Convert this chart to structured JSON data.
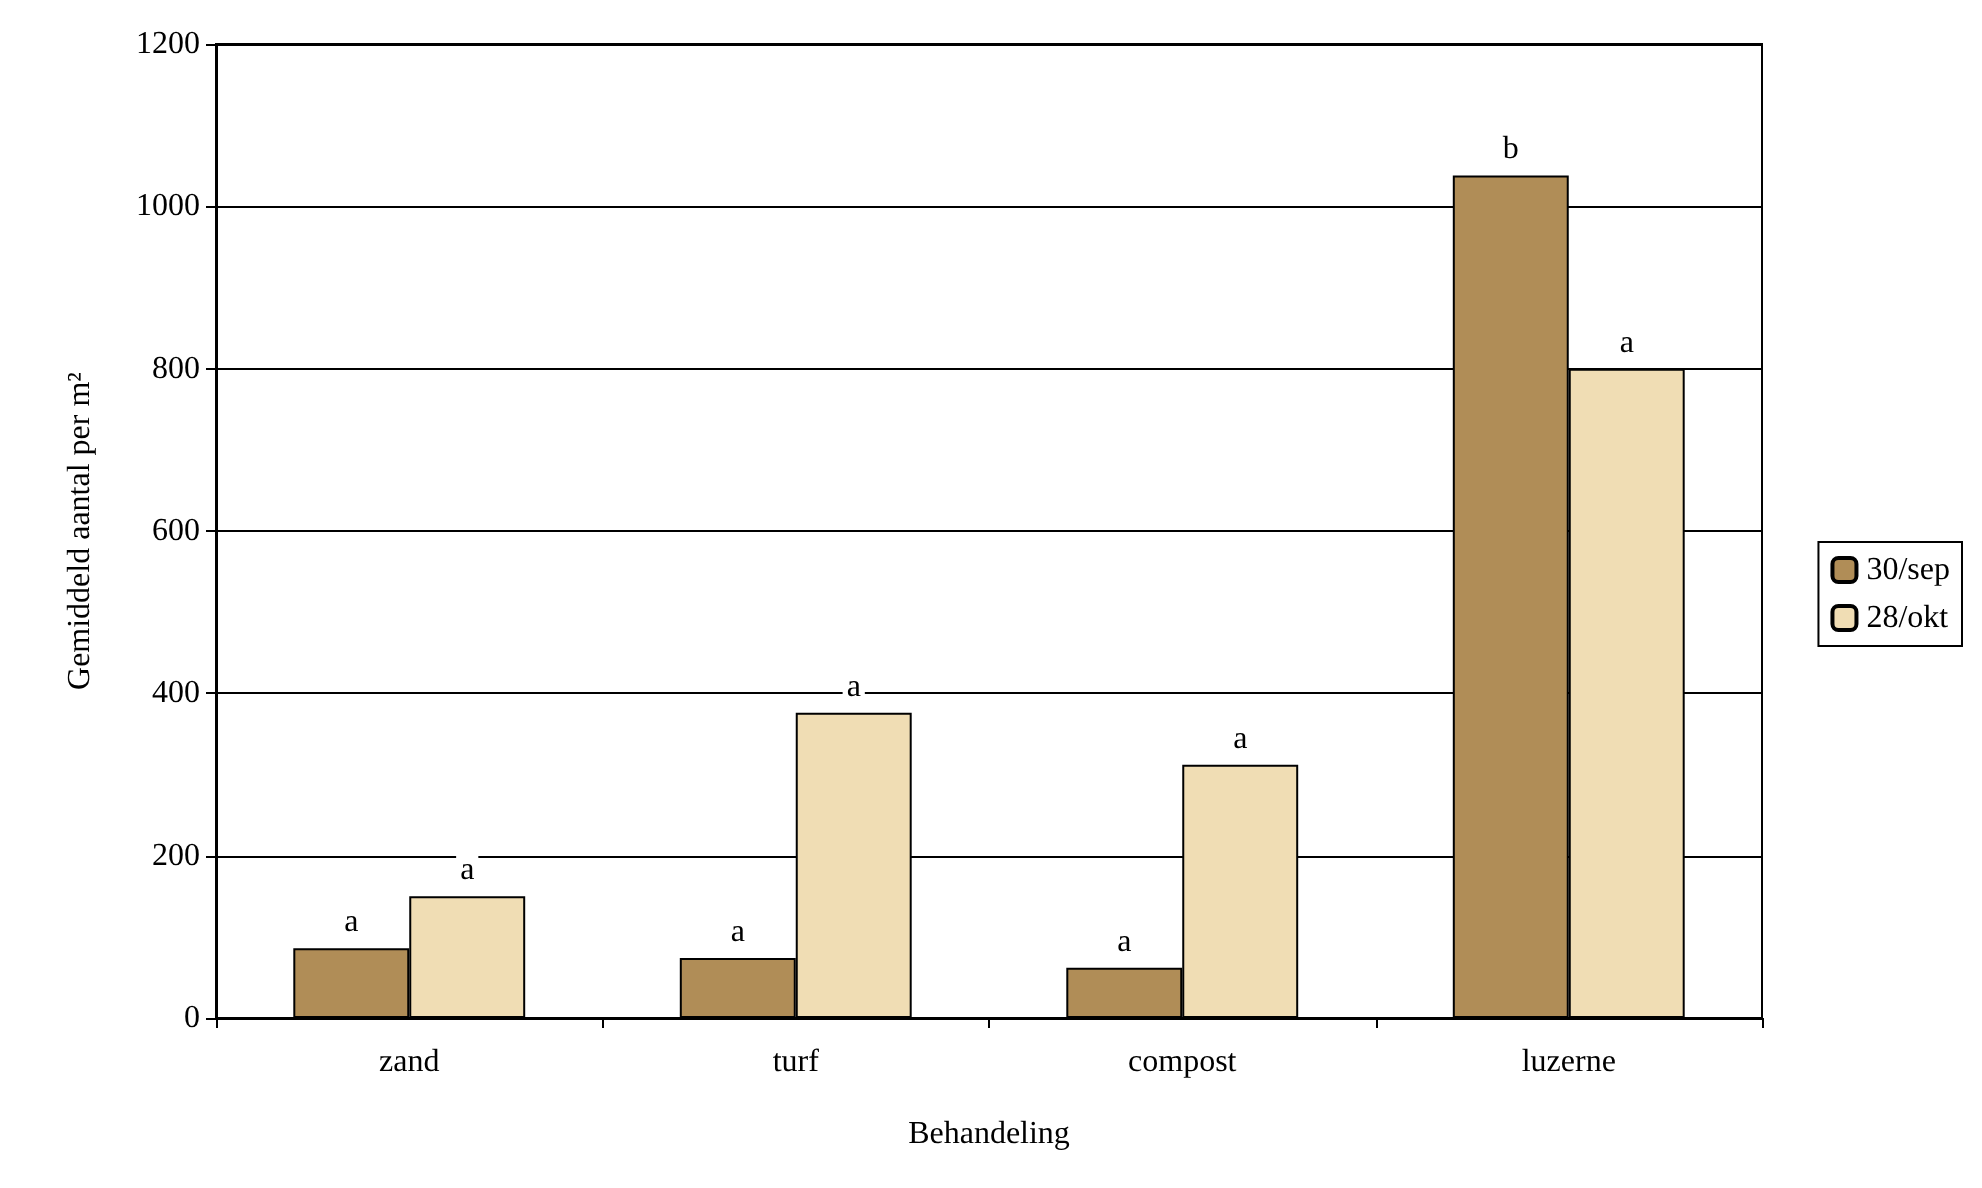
{
  "chart_data": {
    "type": "bar",
    "xlabel": "Behandeling",
    "ylabel": "Gemiddeld aantal per m²",
    "categories": [
      "zand",
      "turf",
      "compost",
      "luzerne"
    ],
    "series": [
      {
        "name": "30/sep",
        "color": "#b08d57",
        "values": [
          86,
          74,
          62,
          1038
        ],
        "value_labels": [
          "a",
          "a",
          "a",
          "b"
        ]
      },
      {
        "name": "28/okt",
        "color": "#f0ddb4",
        "values": [
          150,
          376,
          312,
          800
        ],
        "value_labels": [
          "a",
          "a",
          "a",
          "a"
        ]
      }
    ],
    "ylim": [
      0,
      1200
    ],
    "yticks": [
      0,
      200,
      400,
      600,
      800,
      1000,
      1200
    ],
    "grid": "y",
    "legend": "right"
  }
}
